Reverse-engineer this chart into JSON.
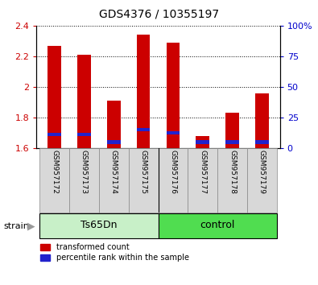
{
  "title": "GDS4376 / 10355197",
  "samples": [
    "GSM957172",
    "GSM957173",
    "GSM957174",
    "GSM957175",
    "GSM957176",
    "GSM957177",
    "GSM957178",
    "GSM957179"
  ],
  "red_values": [
    2.27,
    2.21,
    1.91,
    2.34,
    2.29,
    1.68,
    1.83,
    1.96
  ],
  "blue_tops": [
    1.69,
    1.69,
    1.64,
    1.72,
    1.7,
    1.64,
    1.64,
    1.64
  ],
  "groups": [
    {
      "name": "Ts65Dn",
      "indices": [
        0,
        1,
        2,
        3
      ],
      "color": "#c8f0c8"
    },
    {
      "name": "control",
      "indices": [
        4,
        5,
        6,
        7
      ],
      "color": "#50dd50"
    }
  ],
  "ylim": [
    1.6,
    2.4
  ],
  "yticks": [
    1.6,
    1.8,
    2.0,
    2.2,
    2.4
  ],
  "right_yticks": [
    0,
    25,
    50,
    75,
    100
  ],
  "bar_bottom": 1.6,
  "bar_color_red": "#cc0000",
  "bar_color_blue": "#2222cc",
  "background_color": "#d8d8d8",
  "plot_bg": "#ffffff",
  "tick_label_color_left": "#cc0000",
  "tick_label_color_right": "#0000cc",
  "strain_label": "strain",
  "legend_red": "transformed count",
  "legend_blue": "percentile rank within the sample"
}
